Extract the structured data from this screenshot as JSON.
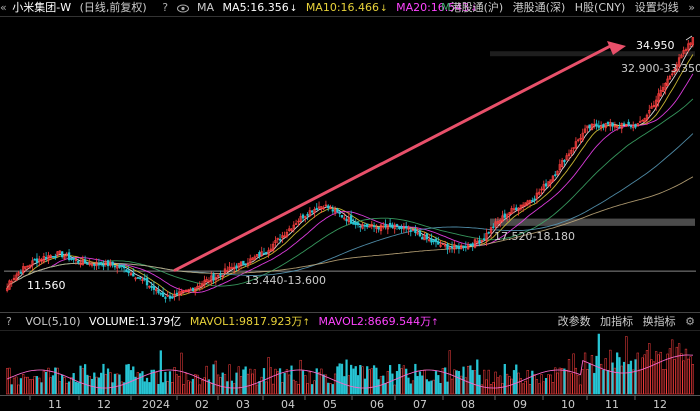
{
  "header": {
    "scroll_left_icon": "«",
    "title": "小米集团-W",
    "period": "(日线,前复权)",
    "help": "?",
    "eye_icon": "eye",
    "ma_label": "MA",
    "ma5": "MA5:16.356",
    "ma10": "MA10:16.466",
    "ma20": "MA20:16.543",
    "m_prefix": "M",
    "hk_sh": "港股通(沪)",
    "hk_sz": "港股通(深)",
    "hshare": "H股(CNY)",
    "settings": "设置均线",
    "scroll_right_icon": "»"
  },
  "volume_header": {
    "help": "?",
    "label": "VOL(5,10)",
    "volume": "VOLUME:1.379亿",
    "mavol1": "MAVOL1:9817.923万",
    "mavol2": "MAVOL2:8669.544万",
    "change_params": "改参数",
    "add_indicator": "加指标",
    "switch_indicator": "换指标",
    "gear_icon": "gear"
  },
  "annotations": {
    "high": "34.950",
    "zone1": "32.900-33.350",
    "zone2": "17.520-18.180",
    "zone3": "13.440-13.600",
    "low": "11.560"
  },
  "x_axis": {
    "labels": [
      "11",
      "12",
      "2024",
      "02",
      "03",
      "04",
      "05",
      "06",
      "07",
      "08",
      "09",
      "10",
      "11",
      "12"
    ]
  },
  "colors": {
    "up": "#ff4040",
    "down": "#27c5d4",
    "ma5": "#ffffff",
    "ma10": "#e8d23a",
    "ma20": "#ff44ff",
    "ma_long1": "#3fb06c",
    "ma_long2": "#5aa0c0",
    "ma_long3": "#c8b080",
    "arrow": "#e8506a"
  },
  "chart_data": {
    "type": "candlestick",
    "title": "小米集团-W (日线,前复权)",
    "x_tick_labels": [
      "11",
      "12",
      "2024",
      "02",
      "03",
      "04",
      "05",
      "06",
      "07",
      "08",
      "09",
      "10",
      "11",
      "12"
    ],
    "price_trend_keypoints": [
      {
        "month": "11",
        "close": 12.3
      },
      {
        "month": "12",
        "close": 14.6
      },
      {
        "month": "2024",
        "close": 13.4
      },
      {
        "month": "02",
        "close": 12.0
      },
      {
        "month": "03",
        "close": 13.0
      },
      {
        "month": "04",
        "close": 15.8
      },
      {
        "month": "05",
        "close": 18.5
      },
      {
        "month": "06",
        "close": 17.6
      },
      {
        "month": "07",
        "close": 16.8
      },
      {
        "month": "08",
        "close": 16.3
      },
      {
        "month": "09",
        "close": 20.0
      },
      {
        "month": "10",
        "close": 25.5
      },
      {
        "month": "11",
        "close": 27.5
      },
      {
        "month": "12",
        "close": 34.6
      }
    ],
    "high": 34.95,
    "low": 11.56,
    "zones": [
      "32.900-33.350",
      "17.520-18.180",
      "13.440-13.600"
    ],
    "ma": {
      "MA5": 16.356,
      "MA10": 16.466,
      "MA20": 16.543
    },
    "volume": {
      "VOLUME": "1.379亿",
      "MAVOL1": "9817.923万",
      "MAVOL2": "8669.544万"
    }
  }
}
